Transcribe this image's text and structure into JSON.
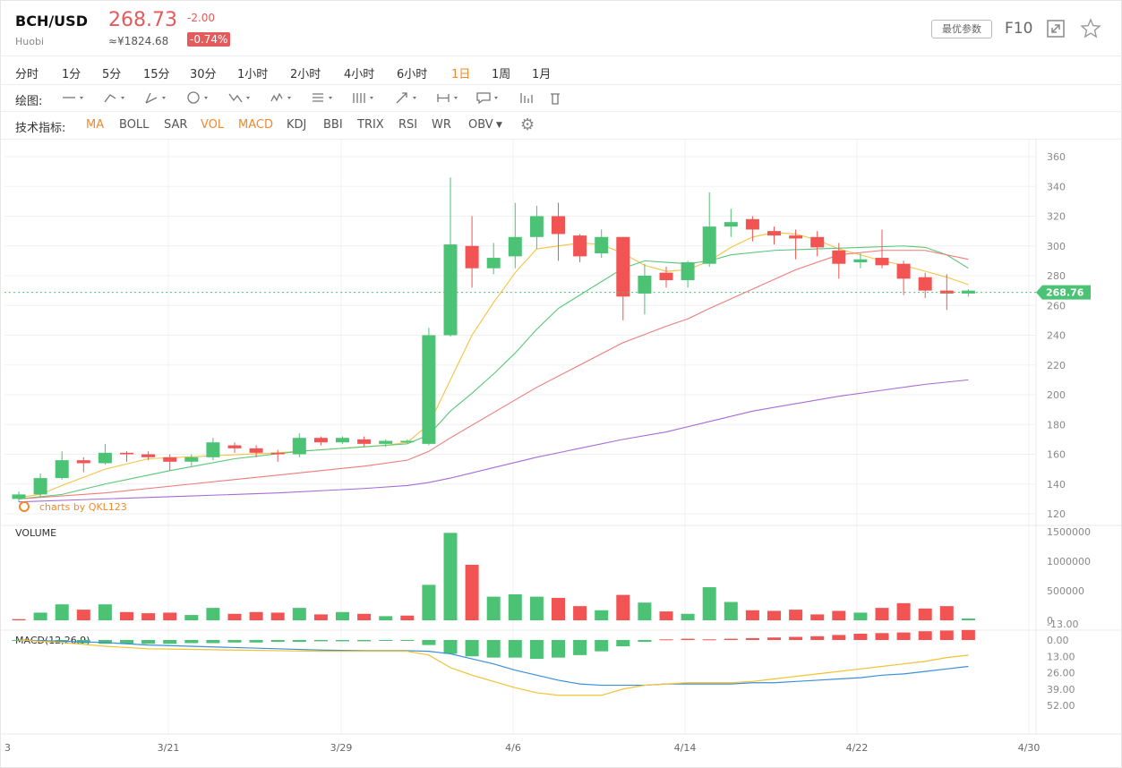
{
  "header": {
    "pair": "BCH/USD",
    "exchange": "Huobi",
    "price": "268.73",
    "cny": "≈¥1824.68",
    "change": "-2.00",
    "change_pct": "-0.74%",
    "params_btn": "最优参数",
    "f10": "F10",
    "colors": {
      "up": "#4cc274",
      "down": "#f25454",
      "accent": "#f0892e"
    }
  },
  "timeframes": [
    "分时",
    "1分",
    "5分",
    "15分",
    "30分",
    "1小时",
    "2小时",
    "4小时",
    "6小时",
    "1日",
    "1周",
    "1月"
  ],
  "active_timeframe": "1日",
  "drawing": {
    "label": "绘图:",
    "tools": [
      "line-tool",
      "ray-tool",
      "channel-tool",
      "shape-tool",
      "wave-tool",
      "pattern-tool",
      "fib-tool",
      "gann-tool",
      "arrow-tool",
      "range-tool",
      "note-tool",
      "layout-tool",
      "delete-tool"
    ]
  },
  "indicators": {
    "label": "技术指标:",
    "items": [
      "MA",
      "BOLL",
      "SAR",
      "VOL",
      "MACD",
      "KDJ",
      "BBI",
      "TRIX",
      "RSI",
      "WR",
      "OBV"
    ],
    "active": [
      "MA",
      "VOL",
      "MACD"
    ]
  },
  "watermark": "charts by QKL123",
  "chart_data": [
    {
      "type": "candlestick",
      "current_price_label": "268.76",
      "y_ticks": [
        120,
        140,
        160,
        180,
        200,
        220,
        240,
        260,
        280,
        300,
        320,
        340,
        360
      ],
      "ylim": [
        120,
        362
      ],
      "x_tick_labels": [
        "3",
        "3/21",
        "3/29",
        "4/6",
        "4/14",
        "4/22",
        "4/30"
      ],
      "candles": [
        {
          "o": 130,
          "h": 135,
          "l": 128,
          "c": 133
        },
        {
          "o": 133,
          "h": 147,
          "l": 131,
          "c": 144
        },
        {
          "o": 144,
          "h": 162,
          "l": 143,
          "c": 156
        },
        {
          "o": 156,
          "h": 158,
          "l": 148,
          "c": 154
        },
        {
          "o": 154,
          "h": 167,
          "l": 153,
          "c": 161
        },
        {
          "o": 161,
          "h": 162,
          "l": 155,
          "c": 160
        },
        {
          "o": 160,
          "h": 162,
          "l": 156,
          "c": 158
        },
        {
          "o": 158,
          "h": 160,
          "l": 149,
          "c": 155
        },
        {
          "o": 155,
          "h": 160,
          "l": 152,
          "c": 158
        },
        {
          "o": 158,
          "h": 171,
          "l": 156,
          "c": 168
        },
        {
          "o": 166,
          "h": 168,
          "l": 161,
          "c": 164
        },
        {
          "o": 164,
          "h": 166,
          "l": 158,
          "c": 161
        },
        {
          "o": 161,
          "h": 163,
          "l": 155,
          "c": 160
        },
        {
          "o": 160,
          "h": 174,
          "l": 158,
          "c": 171
        },
        {
          "o": 171,
          "h": 172,
          "l": 166,
          "c": 168
        },
        {
          "o": 168,
          "h": 172,
          "l": 167,
          "c": 171
        },
        {
          "o": 170,
          "h": 172,
          "l": 165,
          "c": 167
        },
        {
          "o": 167,
          "h": 170,
          "l": 165,
          "c": 169
        },
        {
          "o": 168,
          "h": 170,
          "l": 167,
          "c": 169
        },
        {
          "o": 167,
          "h": 245,
          "l": 166,
          "c": 240
        },
        {
          "o": 240,
          "h": 346,
          "l": 239,
          "c": 301
        },
        {
          "o": 300,
          "h": 320,
          "l": 272,
          "c": 285
        },
        {
          "o": 285,
          "h": 302,
          "l": 281,
          "c": 292
        },
        {
          "o": 293,
          "h": 329,
          "l": 285,
          "c": 306
        },
        {
          "o": 306,
          "h": 327,
          "l": 298,
          "c": 320
        },
        {
          "o": 320,
          "h": 329,
          "l": 290,
          "c": 308
        },
        {
          "o": 307,
          "h": 308,
          "l": 289,
          "c": 293
        },
        {
          "o": 295,
          "h": 311,
          "l": 292,
          "c": 306
        },
        {
          "o": 306,
          "h": 306,
          "l": 250,
          "c": 266
        },
        {
          "o": 268,
          "h": 288,
          "l": 254,
          "c": 280
        },
        {
          "o": 282,
          "h": 286,
          "l": 272,
          "c": 277
        },
        {
          "o": 277,
          "h": 290,
          "l": 272,
          "c": 289
        },
        {
          "o": 288,
          "h": 336,
          "l": 286,
          "c": 313
        },
        {
          "o": 313,
          "h": 325,
          "l": 306,
          "c": 316
        },
        {
          "o": 318,
          "h": 320,
          "l": 303,
          "c": 311
        },
        {
          "o": 310,
          "h": 313,
          "l": 301,
          "c": 307
        },
        {
          "o": 307,
          "h": 311,
          "l": 291,
          "c": 305
        },
        {
          "o": 306,
          "h": 310,
          "l": 293,
          "c": 299
        },
        {
          "o": 297,
          "h": 302,
          "l": 278,
          "c": 288
        },
        {
          "o": 289,
          "h": 295,
          "l": 285,
          "c": 291
        },
        {
          "o": 292,
          "h": 311,
          "l": 285,
          "c": 287
        },
        {
          "o": 288,
          "h": 290,
          "l": 267,
          "c": 278
        },
        {
          "o": 279,
          "h": 282,
          "l": 265,
          "c": 270
        },
        {
          "o": 270,
          "h": 281,
          "l": 257,
          "c": 268
        },
        {
          "o": 268,
          "h": 271,
          "l": 266,
          "c": 270
        }
      ],
      "ma_series": [
        {
          "color": "#f5c242",
          "values": [
            [
              0,
              131
            ],
            [
              1,
              133
            ],
            [
              2,
              139
            ],
            [
              4,
              150
            ],
            [
              6,
              157
            ],
            [
              9,
              159
            ],
            [
              12,
              161
            ],
            [
              15,
              164
            ],
            [
              17,
              166
            ],
            [
              18,
              168
            ],
            [
              19,
              180
            ],
            [
              20,
              210
            ],
            [
              21,
              240
            ],
            [
              22,
              262
            ],
            [
              23,
              282
            ],
            [
              24,
              298
            ],
            [
              26,
              302
            ],
            [
              27,
              301
            ],
            [
              28,
              295
            ],
            [
              29,
              287
            ],
            [
              30,
              283
            ],
            [
              31,
              284
            ],
            [
              32,
              290
            ],
            [
              33,
              299
            ],
            [
              34,
              306
            ],
            [
              35,
              309
            ],
            [
              36,
              308
            ],
            [
              37,
              304
            ],
            [
              38,
              298
            ],
            [
              39,
              294
            ],
            [
              40,
              290
            ],
            [
              41,
              287
            ],
            [
              42,
              283
            ],
            [
              43,
              279
            ],
            [
              44,
              274
            ]
          ]
        },
        {
          "color": "#58c777",
          "values": [
            [
              0,
              130
            ],
            [
              2,
              133
            ],
            [
              4,
              140
            ],
            [
              7,
              149
            ],
            [
              10,
              157
            ],
            [
              13,
              162
            ],
            [
              16,
              165
            ],
            [
              18,
              167
            ],
            [
              19,
              173
            ],
            [
              20,
              189
            ],
            [
              21,
              201
            ],
            [
              22,
              214
            ],
            [
              23,
              228
            ],
            [
              24,
              244
            ],
            [
              25,
              258
            ],
            [
              27,
              276
            ],
            [
              28,
              285
            ],
            [
              29,
              290
            ],
            [
              30,
              289
            ],
            [
              31,
              288
            ],
            [
              32,
              290
            ],
            [
              33,
              294
            ],
            [
              35,
              297
            ],
            [
              37,
              298
            ],
            [
              39,
              299
            ],
            [
              41,
              300
            ],
            [
              42,
              299
            ],
            [
              43,
              294
            ],
            [
              44,
              285
            ]
          ]
        },
        {
          "color": "#ef7b7b",
          "values": [
            [
              0,
              130
            ],
            [
              4,
              134
            ],
            [
              8,
              140
            ],
            [
              12,
              146
            ],
            [
              16,
              152
            ],
            [
              18,
              156
            ],
            [
              19,
              162
            ],
            [
              20,
              171
            ],
            [
              22,
              188
            ],
            [
              24,
              205
            ],
            [
              26,
              220
            ],
            [
              28,
              235
            ],
            [
              30,
              246
            ],
            [
              31,
              251
            ],
            [
              32,
              258
            ],
            [
              34,
              271
            ],
            [
              36,
              284
            ],
            [
              38,
              294
            ],
            [
              40,
              297
            ],
            [
              42,
              297
            ],
            [
              44,
              291
            ]
          ]
        },
        {
          "color": "#a86bd6",
          "values": [
            [
              0,
              128
            ],
            [
              4,
              130
            ],
            [
              8,
              132
            ],
            [
              12,
              134
            ],
            [
              16,
              137
            ],
            [
              18,
              139
            ],
            [
              19,
              141
            ],
            [
              20,
              144
            ],
            [
              22,
              151
            ],
            [
              24,
              158
            ],
            [
              26,
              164
            ],
            [
              28,
              170
            ],
            [
              30,
              175
            ],
            [
              32,
              182
            ],
            [
              34,
              189
            ],
            [
              36,
              194
            ],
            [
              38,
              199
            ],
            [
              40,
              203
            ],
            [
              42,
              207
            ],
            [
              44,
              210
            ]
          ]
        }
      ]
    },
    {
      "type": "bar",
      "title": "VOLUME",
      "y_tick_labels": [
        "0",
        "500000",
        "1000000",
        "1500000"
      ],
      "ylim": [
        0,
        1520000
      ],
      "values": [
        20000,
        130000,
        270000,
        180000,
        270000,
        140000,
        120000,
        130000,
        90000,
        210000,
        110000,
        140000,
        130000,
        210000,
        100000,
        140000,
        110000,
        70000,
        80000,
        600000,
        1480000,
        940000,
        400000,
        440000,
        400000,
        380000,
        240000,
        170000,
        430000,
        300000,
        150000,
        110000,
        560000,
        310000,
        170000,
        160000,
        180000,
        100000,
        160000,
        130000,
        210000,
        290000,
        200000,
        240000,
        30000
      ],
      "directions": [
        "d",
        "u",
        "u",
        "d",
        "u",
        "d",
        "d",
        "d",
        "u",
        "u",
        "d",
        "d",
        "d",
        "u",
        "d",
        "u",
        "d",
        "u",
        "d",
        "u",
        "u",
        "d",
        "u",
        "u",
        "u",
        "d",
        "d",
        "u",
        "d",
        "u",
        "d",
        "u",
        "u",
        "u",
        "d",
        "d",
        "d",
        "d",
        "d",
        "u",
        "d",
        "d",
        "d",
        "d",
        "u"
      ]
    },
    {
      "type": "line",
      "title": "MACD(12,26,9)",
      "y_ticks": [
        -13.0,
        0.0,
        13.0,
        26.0,
        39.0,
        52.0
      ],
      "y_tick_labels": [
        "-13.00",
        "0.00",
        "13.00",
        "26.00",
        "39.00",
        "52.00"
      ],
      "ylim": [
        -16,
        56
      ],
      "dif": [
        [
          0,
          0
        ],
        [
          2,
          2
        ],
        [
          4,
          5
        ],
        [
          6,
          7
        ],
        [
          8,
          7.5
        ],
        [
          10,
          8
        ],
        [
          12,
          8.5
        ],
        [
          14,
          9
        ],
        [
          16,
          9
        ],
        [
          18,
          9
        ],
        [
          19,
          12
        ],
        [
          20,
          22
        ],
        [
          21,
          28
        ],
        [
          22,
          33
        ],
        [
          23,
          38
        ],
        [
          24,
          42
        ],
        [
          25,
          44
        ],
        [
          26,
          44
        ],
        [
          27,
          44
        ],
        [
          28,
          39
        ],
        [
          29,
          36
        ],
        [
          30,
          35
        ],
        [
          31,
          34
        ],
        [
          32,
          34
        ],
        [
          33,
          34
        ],
        [
          34,
          33
        ],
        [
          35,
          31
        ],
        [
          36,
          29
        ],
        [
          37,
          27
        ],
        [
          38,
          25
        ],
        [
          39,
          23
        ],
        [
          40,
          21
        ],
        [
          41,
          19
        ],
        [
          42,
          17
        ],
        [
          43,
          14
        ],
        [
          44,
          12
        ]
      ],
      "dea": [
        [
          0,
          0
        ],
        [
          2,
          1
        ],
        [
          4,
          2
        ],
        [
          6,
          4
        ],
        [
          8,
          5
        ],
        [
          10,
          6
        ],
        [
          12,
          7
        ],
        [
          14,
          8
        ],
        [
          16,
          8.5
        ],
        [
          18,
          8.5
        ],
        [
          19,
          9
        ],
        [
          20,
          11
        ],
        [
          21,
          15
        ],
        [
          22,
          19
        ],
        [
          23,
          24
        ],
        [
          24,
          28
        ],
        [
          25,
          32
        ],
        [
          26,
          35
        ],
        [
          27,
          36
        ],
        [
          28,
          36
        ],
        [
          29,
          36
        ],
        [
          30,
          35
        ],
        [
          31,
          35
        ],
        [
          32,
          35
        ],
        [
          33,
          35
        ],
        [
          34,
          34
        ],
        [
          35,
          34
        ],
        [
          36,
          33
        ],
        [
          37,
          32
        ],
        [
          38,
          31
        ],
        [
          39,
          30
        ],
        [
          40,
          28
        ],
        [
          41,
          27
        ],
        [
          42,
          25
        ],
        [
          43,
          23
        ],
        [
          44,
          21
        ]
      ],
      "histogram": [
        0,
        0.5,
        1.5,
        2.5,
        3,
        3,
        3,
        3,
        2.5,
        2.5,
        2,
        2,
        1.5,
        1.5,
        1,
        1,
        1,
        0.5,
        0.5,
        4,
        11,
        13,
        14,
        14,
        15,
        14,
        12,
        9,
        5,
        1.5,
        -0.5,
        -1,
        -0.5,
        -1,
        -1.5,
        -2,
        -2.5,
        -3,
        -4,
        -5,
        -5.5,
        -6,
        -7,
        -7.5,
        -8
      ],
      "series": [
        {
          "color": "#3c8fd9"
        },
        {
          "color": "#f1c232"
        }
      ]
    }
  ]
}
